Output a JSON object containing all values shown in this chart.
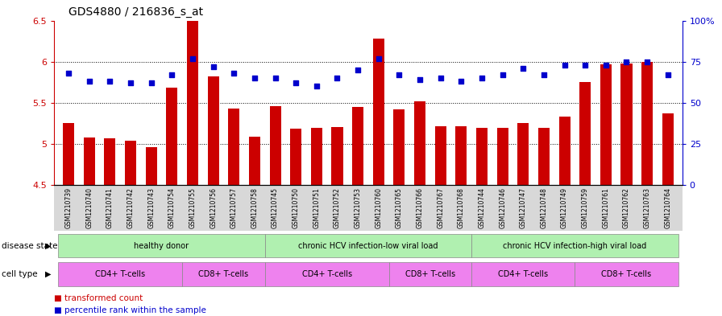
{
  "title": "GDS4880 / 216836_s_at",
  "samples": [
    "GSM1210739",
    "GSM1210740",
    "GSM1210741",
    "GSM1210742",
    "GSM1210743",
    "GSM1210754",
    "GSM1210755",
    "GSM1210756",
    "GSM1210757",
    "GSM1210758",
    "GSM1210745",
    "GSM1210750",
    "GSM1210751",
    "GSM1210752",
    "GSM1210753",
    "GSM1210760",
    "GSM1210765",
    "GSM1210766",
    "GSM1210767",
    "GSM1210768",
    "GSM1210744",
    "GSM1210746",
    "GSM1210747",
    "GSM1210748",
    "GSM1210749",
    "GSM1210759",
    "GSM1210761",
    "GSM1210762",
    "GSM1210763",
    "GSM1210764"
  ],
  "bar_values": [
    5.25,
    5.08,
    5.07,
    5.04,
    4.96,
    5.68,
    6.5,
    5.82,
    5.43,
    5.09,
    5.46,
    5.18,
    5.19,
    5.2,
    5.45,
    6.28,
    5.42,
    5.52,
    5.21,
    5.21,
    5.19,
    5.19,
    5.25,
    5.19,
    5.33,
    5.75,
    5.97,
    5.98,
    6.0,
    5.37
  ],
  "percentile_values": [
    68,
    63,
    63,
    62,
    62,
    67,
    77,
    72,
    68,
    65,
    65,
    62,
    60,
    65,
    70,
    77,
    67,
    64,
    65,
    63,
    65,
    67,
    71,
    67,
    73,
    73,
    73,
    75,
    75,
    67
  ],
  "bar_color": "#cc0000",
  "dot_color": "#0000cc",
  "ylim_left": [
    4.5,
    6.5
  ],
  "ylim_right": [
    0,
    100
  ],
  "yticks_left": [
    4.5,
    5.0,
    5.5,
    6.0,
    6.5
  ],
  "ytick_labels_left": [
    "4.5",
    "5",
    "5.5",
    "6",
    "6.5"
  ],
  "yticks_right": [
    0,
    25,
    50,
    75,
    100
  ],
  "ytick_labels_right": [
    "0",
    "25",
    "50",
    "75",
    "100%"
  ],
  "grid_values": [
    5.0,
    5.5,
    6.0
  ],
  "disease_spans": [
    {
      "label": "healthy donor",
      "start": 0,
      "end": 9,
      "color": "#b0f0b0"
    },
    {
      "label": "chronic HCV infection-low viral load",
      "start": 10,
      "end": 19,
      "color": "#b0f0b0"
    },
    {
      "label": "chronic HCV infection-high viral load",
      "start": 20,
      "end": 29,
      "color": "#b0f0b0"
    }
  ],
  "cell_spans": [
    {
      "label": "CD4+ T-cells",
      "start": 0,
      "end": 5,
      "color": "#ee82ee"
    },
    {
      "label": "CD8+ T-cells",
      "start": 6,
      "end": 9,
      "color": "#ee82ee"
    },
    {
      "label": "CD4+ T-cells",
      "start": 10,
      "end": 15,
      "color": "#ee82ee"
    },
    {
      "label": "CD8+ T-cells",
      "start": 16,
      "end": 19,
      "color": "#ee82ee"
    },
    {
      "label": "CD4+ T-cells",
      "start": 20,
      "end": 24,
      "color": "#ee82ee"
    },
    {
      "label": "CD8+ T-cells",
      "start": 25,
      "end": 29,
      "color": "#ee82ee"
    }
  ],
  "disease_state_label": "disease state",
  "cell_type_label": "cell type",
  "legend_bar_label": "transformed count",
  "legend_dot_label": "percentile rank within the sample",
  "bg_color": "#d8d8d8",
  "title_fontsize": 10,
  "axis_fontsize": 8,
  "tick_fontsize": 5.5
}
